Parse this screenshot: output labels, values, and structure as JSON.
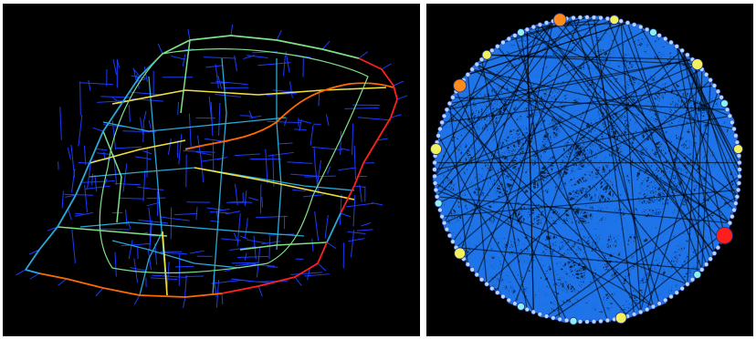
{
  "figure": {
    "panels": [
      {
        "id": "street-network-map",
        "description_kind": "road network colored by edge centrality",
        "background": "#000000",
        "edge_colors": {
          "low": "#1a3cff",
          "mid_low": "#2aa8d8",
          "mid": "#7fe08a",
          "mid_high": "#f0e040",
          "high": "#ff6a00",
          "peak": "#ff2020"
        }
      },
      {
        "id": "circular-network-layout",
        "description_kind": "nodes arranged on a circle, edges drawn as chords",
        "background": "#000000",
        "edge_color": "#1e74e8",
        "node_colors": {
          "small": "#b9d4ff",
          "cyan": "#8ff0f0",
          "yellow": "#f0f060",
          "orange": "#ff8a1e",
          "red": "#ff1e1e"
        }
      }
    ]
  }
}
